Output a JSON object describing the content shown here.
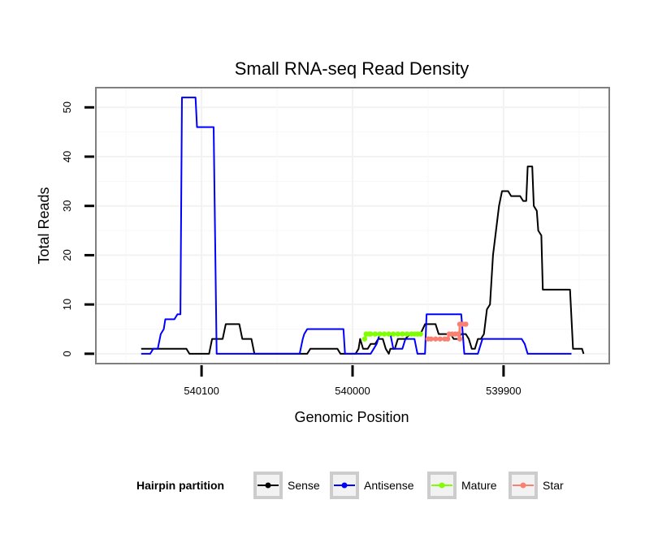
{
  "chart_data": {
    "type": "line",
    "title": "Small RNA-seq Read Density",
    "xlabel": "Genomic Position",
    "ylabel": "Total Reads",
    "xlim": [
      540170,
      539830
    ],
    "ylim": [
      -2,
      54
    ],
    "x_reversed": true,
    "xticks": [
      540100,
      540000,
      539900
    ],
    "xtick_labels": [
      "540100",
      "540000",
      "539900"
    ],
    "yticks": [
      0,
      10,
      20,
      30,
      40,
      50
    ],
    "ytick_labels": [
      "0",
      "10",
      "20",
      "30",
      "40",
      "50"
    ],
    "grid": true,
    "legend": {
      "title": "Hairpin partition",
      "position": "bottom",
      "entries": [
        "Sense",
        "Antisense",
        "Mature",
        "Star"
      ]
    },
    "series": [
      {
        "name": "Sense",
        "color": "#000000",
        "points": [
          [
            540140,
            1
          ],
          [
            540130,
            1
          ],
          [
            540128,
            1
          ],
          [
            540120,
            1
          ],
          [
            540110,
            1
          ],
          [
            540108,
            0
          ],
          [
            540095,
            0
          ],
          [
            540093,
            3
          ],
          [
            540086,
            3
          ],
          [
            540084,
            6
          ],
          [
            540075,
            6
          ],
          [
            540073,
            3
          ],
          [
            540067,
            3
          ],
          [
            540065,
            0
          ],
          [
            540045,
            0
          ],
          [
            540030,
            0
          ],
          [
            540028,
            1
          ],
          [
            540020,
            1
          ],
          [
            540010,
            1
          ],
          [
            540008,
            0
          ],
          [
            539998,
            0
          ],
          [
            539996,
            1
          ],
          [
            539995,
            3
          ],
          [
            539993,
            1
          ],
          [
            539990,
            1
          ],
          [
            539988,
            2
          ],
          [
            539985,
            2
          ],
          [
            539983,
            3
          ],
          [
            539980,
            3
          ],
          [
            539978,
            1
          ],
          [
            539976,
            0
          ],
          [
            539975,
            1
          ],
          [
            539972,
            1
          ],
          [
            539970,
            3
          ],
          [
            539965,
            3
          ],
          [
            539962,
            4
          ],
          [
            539955,
            4
          ],
          [
            539952,
            6
          ],
          [
            539945,
            6
          ],
          [
            539943,
            4
          ],
          [
            539935,
            4
          ],
          [
            539933,
            3
          ],
          [
            539930,
            3
          ],
          [
            539928,
            4
          ],
          [
            539925,
            4
          ],
          [
            539923,
            3
          ],
          [
            539921,
            1
          ],
          [
            539919,
            1
          ],
          [
            539917,
            3
          ],
          [
            539915,
            3
          ],
          [
            539913,
            4
          ],
          [
            539911,
            9
          ],
          [
            539909,
            10
          ],
          [
            539907,
            20
          ],
          [
            539905,
            25
          ],
          [
            539903,
            30
          ],
          [
            539901,
            33
          ],
          [
            539897,
            33
          ],
          [
            539895,
            32
          ],
          [
            539889,
            32
          ],
          [
            539887,
            31
          ],
          [
            539885,
            31
          ],
          [
            539884,
            38
          ],
          [
            539881,
            38
          ],
          [
            539880,
            30
          ],
          [
            539878,
            29
          ],
          [
            539877,
            25
          ],
          [
            539875,
            24
          ],
          [
            539874,
            13
          ],
          [
            539856,
            13
          ],
          [
            539854,
            1
          ],
          [
            539848,
            1
          ],
          [
            539847,
            0
          ]
        ]
      },
      {
        "name": "Antisense",
        "color": "#0000ff",
        "points": [
          [
            540140,
            0
          ],
          [
            540134,
            0
          ],
          [
            540132,
            1
          ],
          [
            540129,
            1
          ],
          [
            540127,
            4
          ],
          [
            540125,
            5
          ],
          [
            540124,
            7
          ],
          [
            540118,
            7
          ],
          [
            540116,
            8
          ],
          [
            540114,
            8
          ],
          [
            540113,
            52
          ],
          [
            540104,
            52
          ],
          [
            540103,
            46
          ],
          [
            540092,
            46
          ],
          [
            540090,
            0
          ],
          [
            540035,
            0
          ],
          [
            540033,
            3
          ],
          [
            540032,
            4
          ],
          [
            540030,
            5
          ],
          [
            540020,
            5
          ],
          [
            540006,
            5
          ],
          [
            540005,
            0
          ],
          [
            539988,
            0
          ],
          [
            539986,
            1
          ],
          [
            539984,
            2
          ],
          [
            539982,
            4
          ],
          [
            539975,
            4
          ],
          [
            539973,
            1
          ],
          [
            539967,
            1
          ],
          [
            539965,
            3
          ],
          [
            539959,
            3
          ],
          [
            539957,
            0
          ],
          [
            539952,
            0
          ],
          [
            539951,
            8
          ],
          [
            539928,
            8
          ],
          [
            539926,
            0
          ],
          [
            539917,
            0
          ],
          [
            539916,
            1
          ],
          [
            539914,
            3
          ],
          [
            539888,
            3
          ],
          [
            539886,
            2
          ],
          [
            539884,
            0
          ],
          [
            539855,
            0
          ]
        ]
      },
      {
        "name": "Mature",
        "color": "#7fff00",
        "points": [
          [
            539992,
            3
          ],
          [
            539991,
            4
          ],
          [
            539989,
            4
          ],
          [
            539988,
            4
          ],
          [
            539985,
            4
          ],
          [
            539982,
            4
          ],
          [
            539979,
            4
          ],
          [
            539976,
            4
          ],
          [
            539973,
            4
          ],
          [
            539970,
            4
          ],
          [
            539967,
            4
          ],
          [
            539964,
            4
          ],
          [
            539961,
            4
          ],
          [
            539959,
            4
          ],
          [
            539957,
            4
          ],
          [
            539955,
            4
          ]
        ]
      },
      {
        "name": "Star",
        "color": "#fa8072",
        "points": [
          [
            539950,
            3
          ],
          [
            539948,
            3
          ],
          [
            539945,
            3
          ],
          [
            539942,
            3
          ],
          [
            539939,
            3
          ],
          [
            539937,
            3
          ],
          [
            539936,
            4
          ],
          [
            539934,
            4
          ],
          [
            539932,
            4
          ],
          [
            539930,
            4
          ],
          [
            539929,
            3
          ],
          [
            539929,
            6
          ],
          [
            539927,
            6
          ],
          [
            539925,
            6
          ]
        ]
      }
    ]
  }
}
